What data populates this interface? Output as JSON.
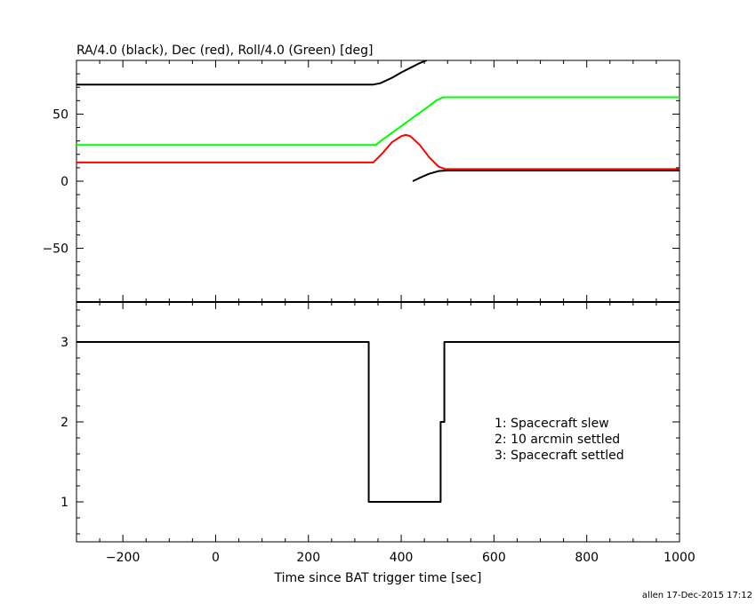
{
  "footer": "allen 17-Dec-2015 17:12",
  "chart_data": [
    {
      "type": "line",
      "title": "RA/4.0 (black), Dec (red), Roll/4.0 (Green) [deg]",
      "xlim": [
        -300,
        1000
      ],
      "ylim": [
        -90,
        90
      ],
      "yticks": [
        -50,
        0,
        50
      ],
      "ytick_labels": [
        "−50",
        "0",
        "50"
      ],
      "grid": false,
      "series": [
        {
          "name": "RA/4.0",
          "color": "#000000",
          "segments": [
            {
              "x": [
                -300,
                340,
                355,
                380,
                400,
                420,
                440,
                455
              ],
              "y": [
                72,
                72,
                73,
                77,
                81,
                84.5,
                88,
                90
              ]
            },
            {
              "x": [
                425,
                440,
                460,
                480,
                500,
                1000
              ],
              "y": [
                0,
                2.5,
                5.5,
                7.5,
                8,
                8
              ]
            }
          ]
        },
        {
          "name": "Dec",
          "color": "#ff0000",
          "segments": [
            {
              "x": [
                -300,
                340,
                360,
                380,
                400,
                410,
                420,
                440,
                460,
                480,
                495,
                1000
              ],
              "y": [
                14,
                14,
                21,
                29,
                33.5,
                34.5,
                33.5,
                27,
                18,
                11,
                9,
                9
              ]
            }
          ]
        },
        {
          "name": "Roll/4.0",
          "color": "#00ff00",
          "segments": [
            {
              "x": [
                -300,
                345,
                360,
                380,
                400,
                420,
                440,
                460,
                475,
                490,
                1000
              ],
              "y": [
                27,
                27,
                31,
                36,
                41,
                46,
                51,
                56,
                60,
                62.5,
                62.5
              ]
            }
          ]
        }
      ]
    },
    {
      "type": "line",
      "xlabel": "Time since BAT trigger time [sec]",
      "xlim": [
        -300,
        1000
      ],
      "ylim": [
        0.5,
        3.5
      ],
      "xticks": [
        -200,
        0,
        200,
        400,
        600,
        800,
        1000
      ],
      "xtick_labels": [
        "−200",
        "0",
        "200",
        "400",
        "600",
        "800",
        "1000"
      ],
      "yticks": [
        1,
        2,
        3
      ],
      "ytick_labels": [
        "1",
        "2",
        "3"
      ],
      "grid": false,
      "series": [
        {
          "color": "#000000",
          "x": [
            -300,
            330,
            330,
            485,
            485,
            493,
            493,
            1000
          ],
          "y": [
            3,
            3,
            1,
            1,
            2,
            2,
            3,
            3
          ]
        }
      ],
      "annotations": [
        "1: Spacecraft slew",
        "2: 10 arcmin settled",
        "3: Spacecraft settled"
      ]
    }
  ]
}
